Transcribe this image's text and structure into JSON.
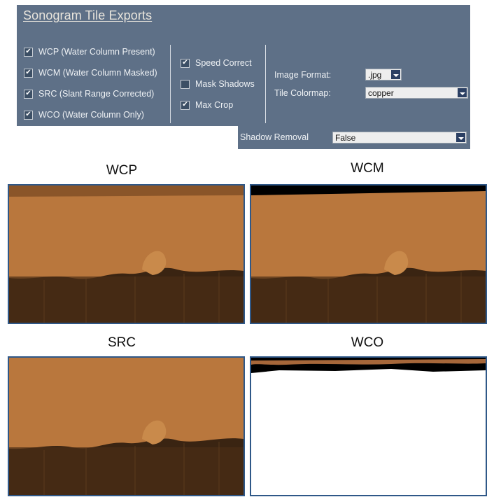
{
  "panel": {
    "title": "Sonogram Tile Exports",
    "exports": [
      {
        "label": "WCP (Water Column Present)",
        "checked": true
      },
      {
        "label": "WCM (Water Column Masked)",
        "checked": true
      },
      {
        "label": "SRC (Slant Range Corrected)",
        "checked": true
      },
      {
        "label": "WCO (Water Column Only)",
        "checked": true
      }
    ],
    "options": [
      {
        "label": "Speed Correct",
        "checked": true
      },
      {
        "label": "Mask Shadows",
        "checked": false
      },
      {
        "label": "Max Crop",
        "checked": true
      }
    ],
    "image_format": {
      "label": "Image Format:",
      "value": ".jpg"
    },
    "tile_colormap": {
      "label": "Tile Colormap:",
      "value": "copper"
    },
    "shadow_removal": {
      "label": "Shadow Removal",
      "value": "False"
    },
    "check_mark": "✔",
    "colors": {
      "panel": "#5e7087",
      "dropdown_button": "#2b3f63",
      "tile_border": "#2f5888"
    }
  },
  "tiles": [
    {
      "title": "WCP",
      "colormap": "copper"
    },
    {
      "title": "WCM",
      "colormap": "copper"
    },
    {
      "title": "SRC",
      "colormap": "copper"
    },
    {
      "title": "WCO",
      "colormap": "copper"
    }
  ]
}
